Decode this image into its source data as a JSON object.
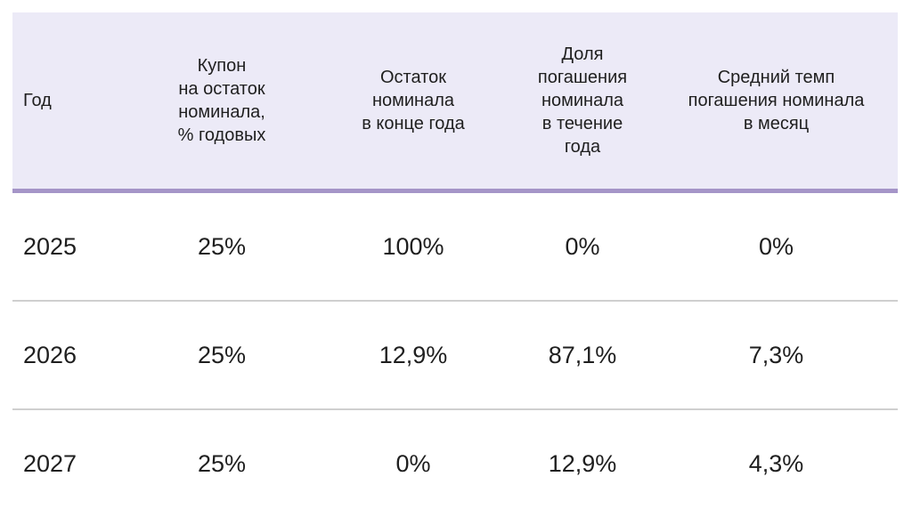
{
  "chart_data": {
    "type": "table",
    "columns": [
      "Год",
      "Купон\nна остаток\nноминала,\n% годовых",
      "Остаток\nноминала\nв конце года",
      "Доля\nпогашения\nноминала\nв течение\nгода",
      "Средний темп\nпогашения номинала\nв месяц"
    ],
    "rows": [
      [
        "2025",
        "25%",
        "100%",
        "0%",
        "0%"
      ],
      [
        "2026",
        "25%",
        "12,9%",
        "87,1%",
        "7,3%"
      ],
      [
        "2027",
        "25%",
        "0%",
        "12,9%",
        "4,3%"
      ]
    ],
    "colors": {
      "header_bg": "#eceaf7",
      "header_rule": "#a595c8",
      "row_rule": "#cfcfcf"
    }
  }
}
